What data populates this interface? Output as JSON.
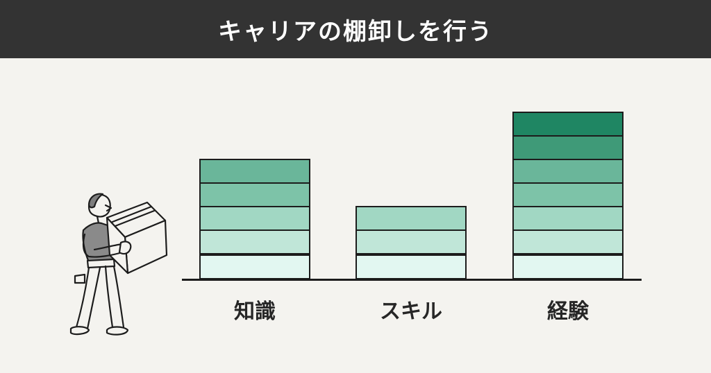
{
  "title": "キャリアの棚卸しを行う",
  "columns": [
    {
      "label": "知識",
      "block_colors": [
        "#e2f7f1",
        "#c0e6d8",
        "#a1d7c3",
        "#7dc3a8",
        "#6ab69a"
      ]
    },
    {
      "label": "スキル",
      "block_colors": [
        "#e2f7f1",
        "#c0e6d8",
        "#a1d7c3"
      ]
    },
    {
      "label": "経験",
      "block_colors": [
        "#e2f7f1",
        "#c0e6d8",
        "#a1d7c3",
        "#7dc3a8",
        "#6ab69a",
        "#3f9a78",
        "#1f8663"
      ]
    }
  ],
  "colors": {
    "header_bg": "#333333",
    "page_bg": "#f4f3ef",
    "outline": "#1c1c1c"
  },
  "illustration": "person-carrying-box-icon"
}
